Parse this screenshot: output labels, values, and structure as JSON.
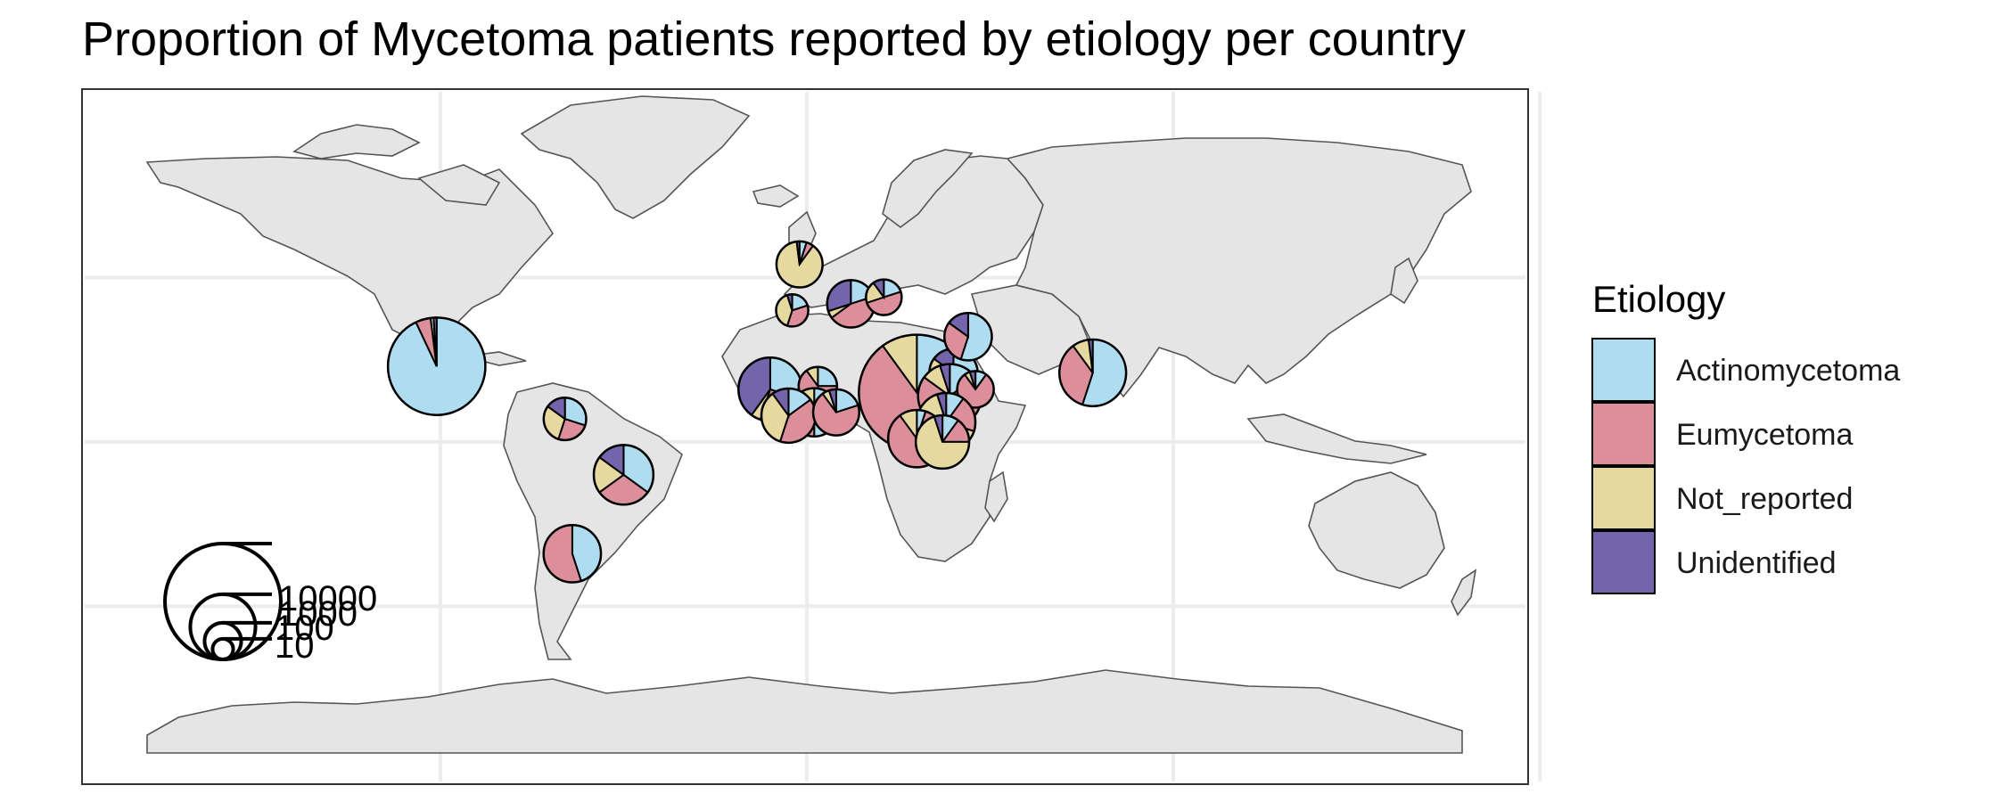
{
  "chart_data": {
    "type": "pie_map",
    "title": "Proportion of Mycetoma patients reported by etiology per country",
    "legend": {
      "title": "Etiology",
      "placement": "right",
      "entries": [
        {
          "name": "Actinomycetoma",
          "color": "#aedcf0"
        },
        {
          "name": "Eumycetoma",
          "color": "#dc8f9a"
        },
        {
          "name": "Not_reported",
          "color": "#e6d9a0"
        },
        {
          "name": "Unidentified",
          "color": "#7464ac"
        }
      ]
    },
    "size_legend": {
      "values": [
        10,
        100,
        1000,
        10000
      ],
      "labels": [
        "10",
        "100",
        "1000",
        "10000"
      ]
    },
    "grid": true,
    "xlim": [
      -180,
      180
    ],
    "ylim": [
      -90,
      84
    ],
    "countries": [
      {
        "lon": -101,
        "lat": 23,
        "size": 5000,
        "values": [
          93,
          5,
          1,
          1
        ]
      },
      {
        "lon": -66,
        "lat": 7,
        "size": 180,
        "values": [
          30,
          25,
          30,
          15
        ]
      },
      {
        "lon": -50,
        "lat": -10,
        "size": 700,
        "values": [
          35,
          30,
          20,
          15
        ]
      },
      {
        "lon": -64,
        "lat": -34,
        "size": 600,
        "values": [
          45,
          55,
          0,
          0
        ]
      },
      {
        "lon": -2,
        "lat": 54,
        "size": 250,
        "values": [
          5,
          5,
          88,
          2
        ]
      },
      {
        "lon": -4,
        "lat": 40,
        "size": 60,
        "values": [
          20,
          35,
          40,
          5
        ]
      },
      {
        "lon": 12,
        "lat": 42,
        "size": 280,
        "values": [
          20,
          45,
          5,
          30
        ]
      },
      {
        "lon": 21,
        "lat": 44,
        "size": 90,
        "values": [
          20,
          50,
          20,
          10
        ]
      },
      {
        "lon": -10,
        "lat": 16,
        "size": 900,
        "values": [
          30,
          25,
          5,
          40
        ]
      },
      {
        "lon": 3,
        "lat": 17,
        "size": 120,
        "values": [
          25,
          65,
          10,
          0
        ]
      },
      {
        "lon": 2,
        "lat": 9,
        "size": 300,
        "values": [
          50,
          40,
          10,
          0
        ]
      },
      {
        "lon": -5,
        "lat": 8,
        "size": 480,
        "values": [
          15,
          40,
          35,
          10
        ]
      },
      {
        "lon": 8,
        "lat": 9,
        "size": 250,
        "values": [
          20,
          70,
          5,
          5
        ]
      },
      {
        "lon": 30,
        "lat": 15,
        "size": 10000,
        "values": [
          15,
          75,
          10,
          0
        ]
      },
      {
        "lon": 40,
        "lat": 21,
        "size": 300,
        "values": [
          25,
          50,
          10,
          15
        ]
      },
      {
        "lon": 39,
        "lat": 14,
        "size": 900,
        "values": [
          15,
          70,
          10,
          5
        ]
      },
      {
        "lon": 46,
        "lat": 16,
        "size": 100,
        "values": [
          10,
          80,
          5,
          5
        ]
      },
      {
        "lon": 44,
        "lat": 32,
        "size": 280,
        "values": [
          55,
          30,
          0,
          15
        ]
      },
      {
        "lon": 38,
        "lat": 6,
        "size": 650,
        "values": [
          10,
          20,
          65,
          5
        ]
      },
      {
        "lon": 30,
        "lat": 1,
        "size": 600,
        "values": [
          5,
          85,
          10,
          0
        ]
      },
      {
        "lon": 37,
        "lat": 0,
        "size": 450,
        "values": [
          10,
          15,
          70,
          5
        ]
      },
      {
        "lon": 78,
        "lat": 21,
        "size": 1100,
        "values": [
          55,
          35,
          8,
          2
        ]
      }
    ]
  }
}
